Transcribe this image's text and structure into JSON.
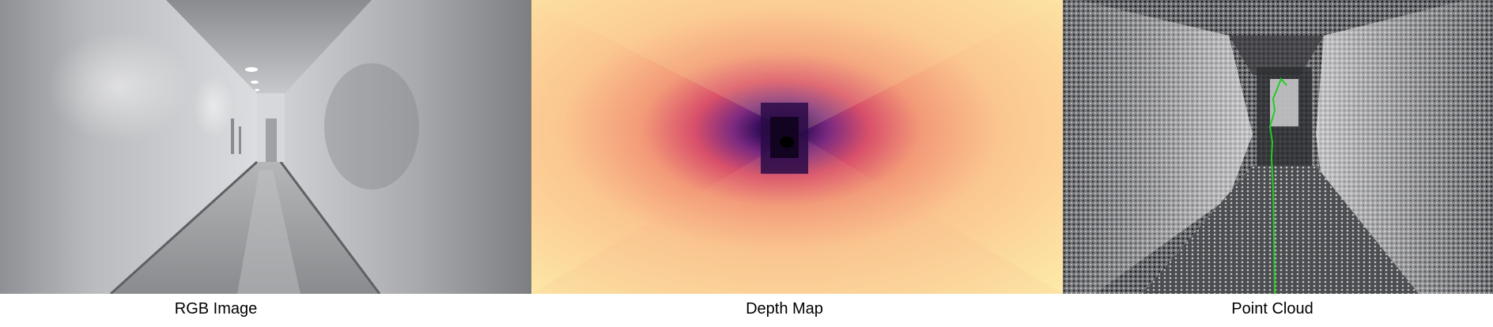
{
  "panels": [
    {
      "caption": "RGB Image"
    },
    {
      "caption": "Depth Map"
    },
    {
      "caption": "Point Cloud"
    }
  ],
  "colors": {
    "wall_light": "#d4d5d9",
    "wall_dark": "#8e8f94",
    "floor": "#9c9da0",
    "depth_near": "#fde9a8",
    "depth_mid": "#f2a07a",
    "depth_far": "#3a0f5e",
    "trajectory": "#22cc22"
  }
}
